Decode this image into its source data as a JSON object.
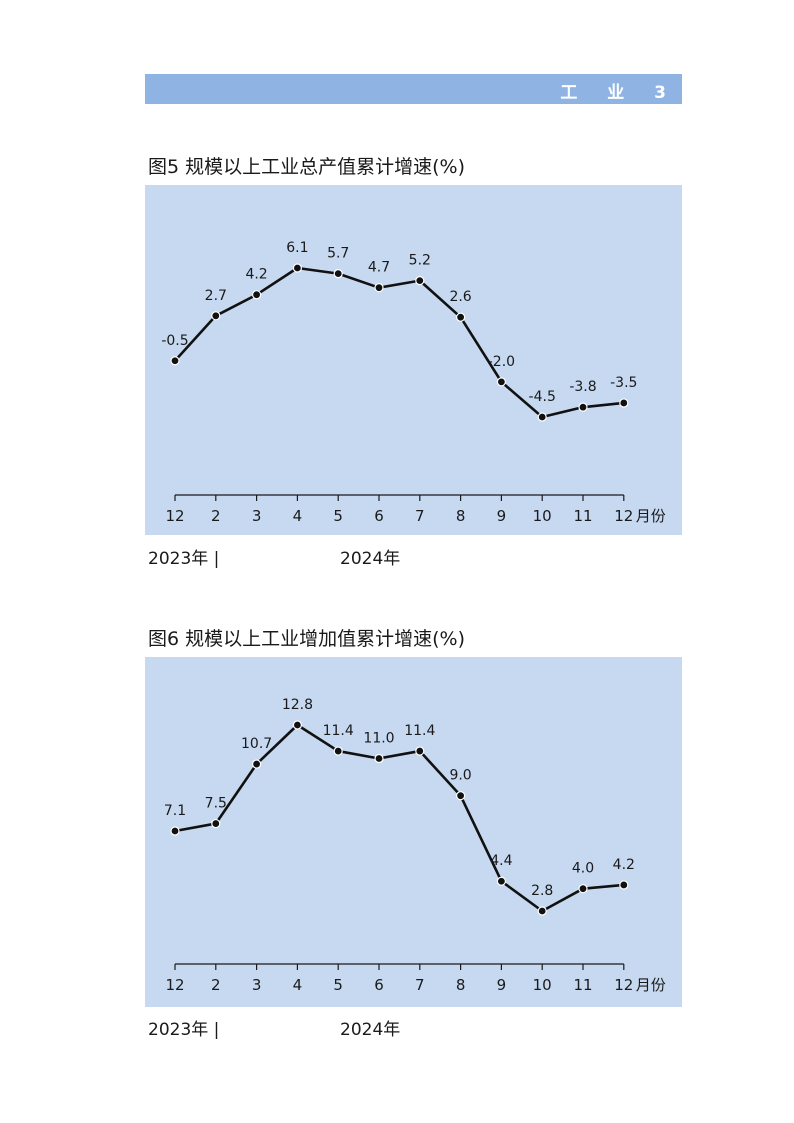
{
  "header": {
    "section": "工 业 3"
  },
  "chart_data": [
    {
      "type": "line",
      "title": "图5  规模以上工业总产值累计增速(%)",
      "categories": [
        "12",
        "2",
        "3",
        "4",
        "5",
        "6",
        "7",
        "8",
        "9",
        "10",
        "11",
        "12"
      ],
      "x_unit_label": "月份",
      "values": [
        -0.5,
        2.7,
        4.2,
        6.1,
        5.7,
        4.7,
        5.2,
        2.6,
        -2.0,
        -4.5,
        -3.8,
        -3.5
      ],
      "value_labels": [
        "-0.5",
        "2.7",
        "4.2",
        "6.1",
        "5.7",
        "4.7",
        "5.2",
        "2.6",
        "-2.0",
        "-4.5",
        "-3.8",
        "-3.5"
      ],
      "year_labels": [
        "2023年 |",
        "2024年"
      ],
      "grid": false
    },
    {
      "type": "line",
      "title": "图6  规模以上工业增加值累计增速(%)",
      "categories": [
        "12",
        "2",
        "3",
        "4",
        "5",
        "6",
        "7",
        "8",
        "9",
        "10",
        "11",
        "12"
      ],
      "x_unit_label": "月份",
      "values": [
        7.1,
        7.5,
        10.7,
        12.8,
        11.4,
        11.0,
        11.4,
        9.0,
        4.4,
        2.8,
        4.0,
        4.2
      ],
      "value_labels": [
        "7.1",
        "7.5",
        "10.7",
        "12.8",
        "11.4",
        "11.0",
        "11.4",
        "9.0",
        "4.4",
        "2.8",
        "4.0",
        "4.2"
      ],
      "year_labels": [
        "2023年 |",
        "2024年"
      ],
      "grid": false
    }
  ]
}
